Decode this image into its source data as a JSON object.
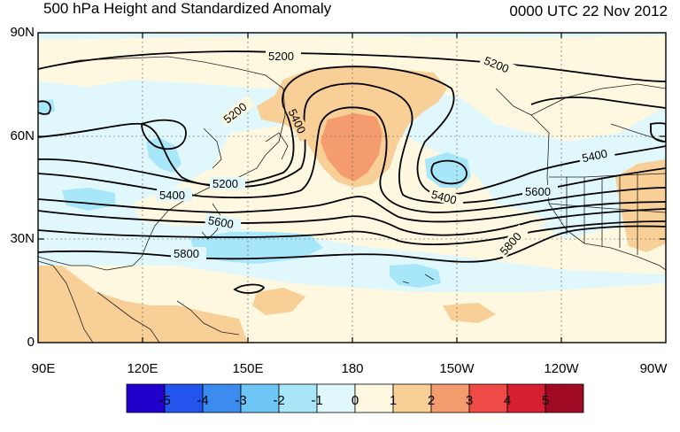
{
  "title": "500 hPa Height and Standardized Anomaly",
  "timestamp": "0000 UTC 22 Nov 2012",
  "lat_labels": [
    "90N",
    "60N",
    "30N",
    "0"
  ],
  "lon_labels": [
    "90E",
    "120E",
    "150E",
    "180",
    "150W",
    "120W",
    "90W"
  ],
  "contour_labels": {
    "c1": "5200",
    "c2": "5200",
    "c3": "5200",
    "c4": "5200",
    "c5": "5400",
    "c6": "5400",
    "c7": "5400",
    "c8": "5400",
    "c9": "5600",
    "c10": "5600",
    "c11": "5800",
    "c12": "5800"
  },
  "colorbar": {
    "labels": [
      "-5",
      "-4",
      "-3",
      "-2",
      "-1",
      "0",
      "1",
      "2",
      "3",
      "4",
      "5"
    ],
    "colors": [
      "#2200cc",
      "#2255ee",
      "#3c8cf0",
      "#6ec6f6",
      "#a8e6fa",
      "#e0f8fc",
      "#fdf8df",
      "#f8cf96",
      "#f59c6e",
      "#ef4a46",
      "#d62032",
      "#a00a22"
    ]
  }
}
